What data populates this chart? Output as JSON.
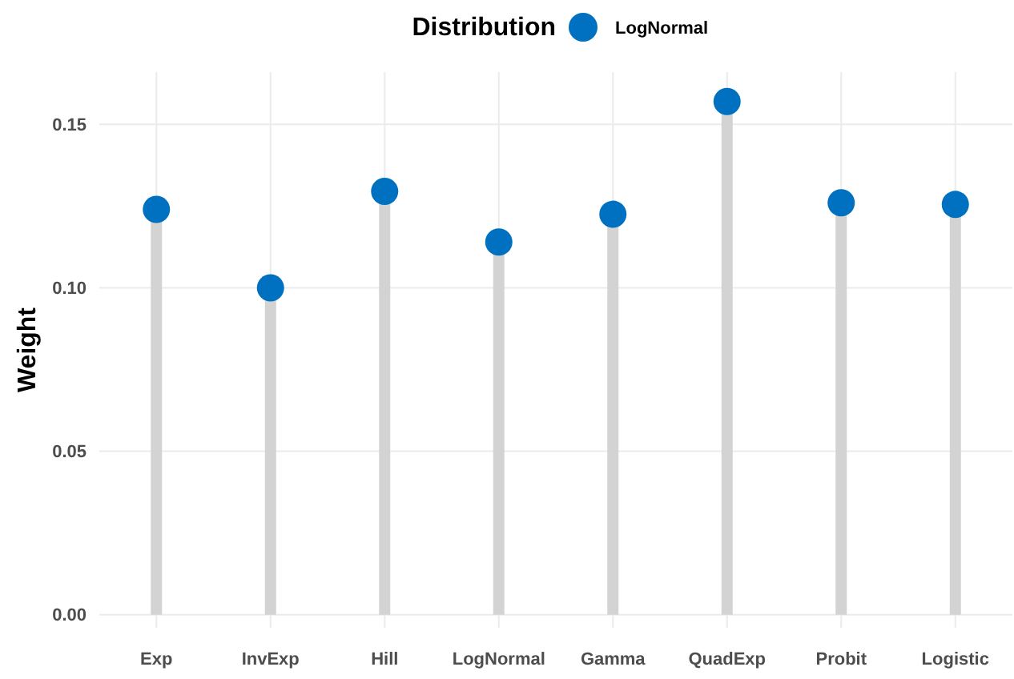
{
  "chart_data": {
    "type": "lollipop",
    "legend_title": "Distribution",
    "ylabel": "Weight",
    "categories": [
      "Exp",
      "InvExp",
      "Hill",
      "LogNormal",
      "Gamma",
      "QuadExp",
      "Probit",
      "Logistic"
    ],
    "series": [
      {
        "name": "LogNormal",
        "color": "#0070c0",
        "values": [
          0.124,
          0.1,
          0.1295,
          0.114,
          0.1225,
          0.157,
          0.126,
          0.1255
        ]
      }
    ],
    "ylim": [
      -0.004,
      0.166
    ],
    "yticks": [
      {
        "value": 0,
        "label": "0.00"
      },
      {
        "value": 0.05,
        "label": "0.05"
      },
      {
        "value": 0.1,
        "label": "0.10"
      },
      {
        "value": 0.15,
        "label": "0.15"
      }
    ],
    "grid": true,
    "legend": "top",
    "marker": "circle"
  }
}
